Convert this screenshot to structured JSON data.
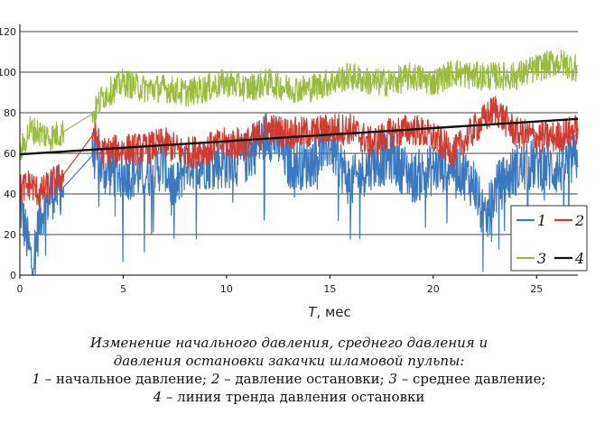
{
  "chart_data": {
    "type": "line",
    "xlabel_italic": "T",
    "xlabel_rest": ", мес",
    "ylabel": "",
    "xlim": [
      0,
      27
    ],
    "ylim": [
      0,
      120
    ],
    "xticks": [
      0,
      5,
      10,
      15,
      20,
      25
    ],
    "yticks": [
      0,
      20,
      40,
      60,
      80,
      100,
      120
    ],
    "ytick_labels": [
      "0",
      "20",
      "40",
      "60",
      "80",
      "100",
      "120"
    ],
    "grid": "horizontal",
    "legend_placement": "bottom-right",
    "series": [
      {
        "name": "1",
        "color": "#3a78c0",
        "x": [
          0,
          0.3,
          0.6,
          1.0,
          1.5,
          2.0,
          3.6,
          4.0,
          5.0,
          6.0,
          7.0,
          7.5,
          8.0,
          9.0,
          10.0,
          11.0,
          12.0,
          12.5,
          13.0,
          14.0,
          15.0,
          16.0,
          17.0,
          18.0,
          19.0,
          20.0,
          21.0,
          22.0,
          22.5,
          23.0,
          24.0,
          25.0,
          26.0,
          27.0
        ],
        "values": [
          35,
          20,
          5,
          30,
          40,
          42,
          60,
          52,
          50,
          50,
          55,
          40,
          55,
          55,
          55,
          58,
          70,
          65,
          55,
          55,
          65,
          45,
          55,
          58,
          48,
          52,
          55,
          45,
          25,
          42,
          52,
          55,
          52,
          58
        ]
      },
      {
        "name": "2",
        "color": "#d13b2f",
        "x": [
          0,
          0.5,
          1.0,
          1.5,
          2.0,
          3.6,
          4.0,
          5.0,
          6.0,
          7.0,
          8.0,
          9.0,
          10.0,
          11.0,
          12.0,
          13.0,
          14.0,
          15.0,
          16.0,
          17.0,
          18.0,
          19.0,
          20.0,
          21.0,
          22.0,
          23.0,
          24.0,
          25.0,
          26.0,
          27.0
        ],
        "values": [
          42,
          45,
          40,
          45,
          48,
          70,
          60,
          62,
          62,
          65,
          60,
          62,
          65,
          65,
          72,
          70,
          70,
          72,
          72,
          65,
          70,
          72,
          68,
          60,
          72,
          82,
          70,
          68,
          68,
          72
        ]
      },
      {
        "name": "3",
        "color": "#9bbd3f",
        "x": [
          0,
          0.5,
          1.0,
          1.5,
          2.0,
          3.6,
          4.0,
          5.0,
          6.0,
          7.0,
          8.0,
          9.0,
          10.0,
          11.0,
          12.0,
          13.0,
          14.0,
          15.0,
          16.0,
          17.0,
          18.0,
          19.0,
          20.0,
          21.0,
          22.0,
          23.0,
          24.0,
          25.0,
          26.0,
          27.0
        ],
        "values": [
          60,
          72,
          70,
          68,
          70,
          80,
          88,
          95,
          92,
          92,
          90,
          92,
          95,
          92,
          95,
          92,
          92,
          95,
          98,
          95,
          95,
          98,
          95,
          100,
          98,
          98,
          98,
          102,
          105,
          102
        ]
      },
      {
        "name": "4",
        "color": "#111111",
        "x": [
          0,
          27
        ],
        "values": [
          59.5,
          77
        ]
      }
    ]
  },
  "caption": {
    "line1": "Изменение начального давления, среднего давления и",
    "line2": "давления остановки закачки шламовой пульпы:",
    "line3_n1": "1",
    "line3_t1": " – начальное давление; ",
    "line3_n2": "2",
    "line3_t2": " – давление остановки; ",
    "line3_n3": "3",
    "line3_t3": " – среднее давление;",
    "line4_n4": "4",
    "line4_t4": " – линия тренда давления остановки"
  }
}
